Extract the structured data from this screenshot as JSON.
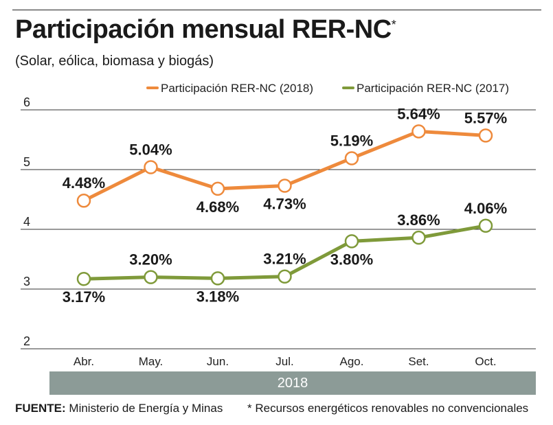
{
  "header": {
    "title": "Participación mensual RER-NC",
    "title_marker": "*",
    "subtitle": "(Solar, eólica, biomasa y biogás)"
  },
  "colors": {
    "series_2018": "#ee8a3c",
    "series_2017": "#7f9a3a",
    "band": "#8c9b97",
    "grid": "#333333"
  },
  "chart_data": {
    "type": "line",
    "categories": [
      "Abr.",
      "May.",
      "Jun.",
      "Jul.",
      "Ago.",
      "Set.",
      "Oct."
    ],
    "series": [
      {
        "name": "Participación RER-NC (2018)",
        "values": [
          4.48,
          5.04,
          4.68,
          4.73,
          5.19,
          5.64,
          5.57
        ],
        "labels": [
          "4.48%",
          "5.04%",
          "4.68%",
          "4.73%",
          "5.19%",
          "5.64%",
          "5.57%"
        ],
        "label_pos": [
          "above",
          "above",
          "below",
          "below",
          "above",
          "above",
          "above"
        ]
      },
      {
        "name": "Participación RER-NC (2017)",
        "values": [
          3.17,
          3.2,
          3.18,
          3.21,
          3.8,
          3.86,
          4.06
        ],
        "labels": [
          "3.17%",
          "3.20%",
          "3.18%",
          "3.21%",
          "3.80%",
          "3.86%",
          "4.06%"
        ],
        "label_pos": [
          "below",
          "above",
          "below",
          "above",
          "below",
          "above",
          "above"
        ]
      }
    ],
    "yticks": [
      2,
      3,
      4,
      5,
      6
    ],
    "ylim": [
      2,
      6
    ],
    "xband_label": "2018",
    "title": "Participación mensual RER-NC",
    "legend_position": "top-right",
    "grid": true
  },
  "footer": {
    "source_label": "FUENTE:",
    "source_text": "Ministerio de Energía y Minas",
    "footnote": "* Recursos energéticos renovables no convencionales"
  }
}
